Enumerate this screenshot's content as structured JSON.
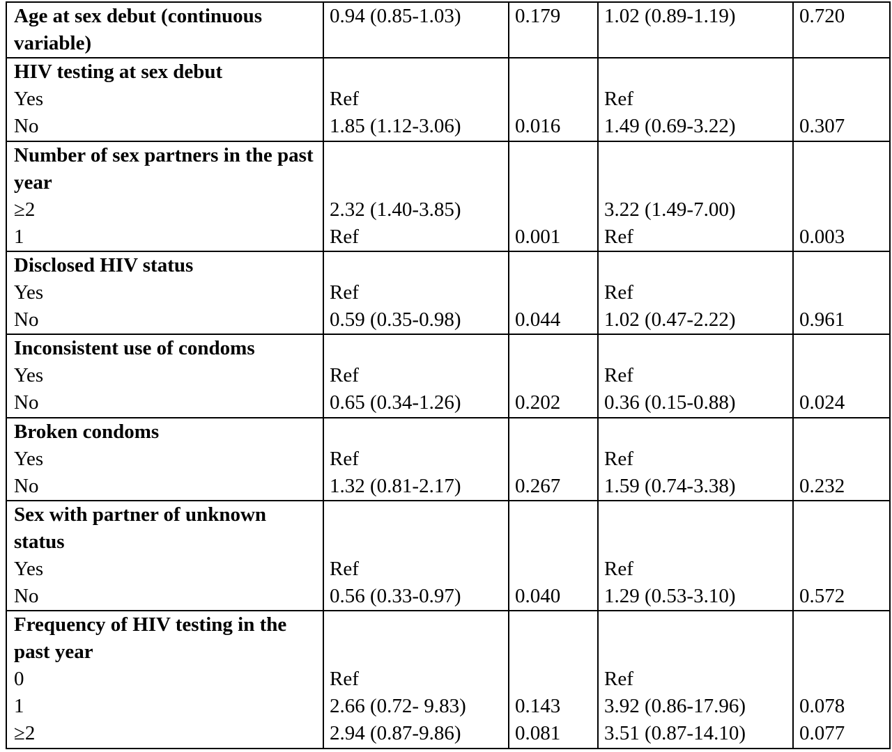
{
  "rows": [
    {
      "c0": [
        {
          "t": "Age at sex debut (continuous variable)",
          "b": true,
          "span": 2
        }
      ],
      "c1": [
        "0.94 (0.85-1.03)",
        ""
      ],
      "c2": [
        "0.179",
        ""
      ],
      "c3": [
        "1.02 (0.89-1.19)",
        ""
      ],
      "c4": [
        "0.720",
        ""
      ]
    },
    {
      "c0": [
        {
          "t": "HIV testing at sex debut",
          "b": true
        },
        {
          "t": "Yes"
        },
        {
          "t": "No"
        }
      ],
      "c1": [
        "",
        "Ref",
        "1.85 (1.12-3.06)"
      ],
      "c2": [
        "",
        "",
        "0.016"
      ],
      "c3": [
        "",
        "Ref",
        "1.49 (0.69-3.22)"
      ],
      "c4": [
        "",
        "",
        "0.307"
      ]
    },
    {
      "c0": [
        {
          "t": "Number of sex partners in the past year",
          "b": true,
          "span": 2
        },
        {
          "t": "≥2"
        },
        {
          "t": "1"
        }
      ],
      "c1": [
        "",
        "",
        "2.32 (1.40-3.85)",
        "Ref"
      ],
      "c2": [
        "",
        "",
        "",
        "0.001"
      ],
      "c3": [
        "",
        "",
        "3.22 (1.49-7.00)",
        "Ref"
      ],
      "c4": [
        "",
        "",
        "",
        "0.003"
      ]
    },
    {
      "c0": [
        {
          "t": "Disclosed HIV status",
          "b": true
        },
        {
          "t": "Yes"
        },
        {
          "t": "No"
        }
      ],
      "c1": [
        "",
        "Ref",
        "0.59 (0.35-0.98)"
      ],
      "c2": [
        "",
        "",
        "0.044"
      ],
      "c3": [
        "",
        "Ref",
        "1.02 (0.47-2.22)"
      ],
      "c4": [
        "",
        "",
        "0.961"
      ]
    },
    {
      "c0": [
        {
          "t": "Inconsistent use of condoms",
          "b": true
        },
        {
          "t": "Yes"
        },
        {
          "t": "No"
        }
      ],
      "c1": [
        "",
        "Ref",
        "0.65 (0.34-1.26)"
      ],
      "c2": [
        "",
        "",
        "0.202"
      ],
      "c3": [
        "",
        "Ref",
        "0.36 (0.15-0.88)"
      ],
      "c4": [
        "",
        "",
        "0.024"
      ]
    },
    {
      "c0": [
        {
          "t": "Broken condoms",
          "b": true
        },
        {
          "t": "Yes"
        },
        {
          "t": "No"
        }
      ],
      "c1": [
        "",
        "Ref",
        "1.32 (0.81-2.17)"
      ],
      "c2": [
        "",
        "",
        "0.267"
      ],
      "c3": [
        "",
        "Ref",
        "1.59 (0.74-3.38)"
      ],
      "c4": [
        "",
        "",
        "0.232"
      ]
    },
    {
      "c0": [
        {
          "t": "Sex with partner of unknown status",
          "b": true,
          "span": 2
        },
        {
          "t": "Yes"
        },
        {
          "t": "No"
        }
      ],
      "c1": [
        "",
        "",
        "Ref",
        "0.56 (0.33-0.97)"
      ],
      "c2": [
        "",
        "",
        "",
        "0.040"
      ],
      "c3": [
        "",
        "",
        "Ref",
        "1.29 (0.53-3.10)"
      ],
      "c4": [
        "",
        "",
        "",
        "0.572"
      ]
    },
    {
      "c0": [
        {
          "t": "Frequency of HIV testing in the past year",
          "b": true,
          "span": 2
        },
        {
          "t": "0"
        },
        {
          "t": "1"
        },
        {
          "t": "≥2"
        }
      ],
      "c1": [
        "",
        "",
        "Ref",
        "2.66 (0.72- 9.83)",
        "2.94 (0.87-9.86)"
      ],
      "c2": [
        "",
        "",
        "",
        "0.143",
        "0.081"
      ],
      "c3": [
        "",
        "",
        "Ref",
        "3.92 (0.86-17.96)",
        "3.51 (0.87-14.10)"
      ],
      "c4": [
        "",
        "",
        "",
        "0.078",
        "0.077"
      ]
    }
  ]
}
